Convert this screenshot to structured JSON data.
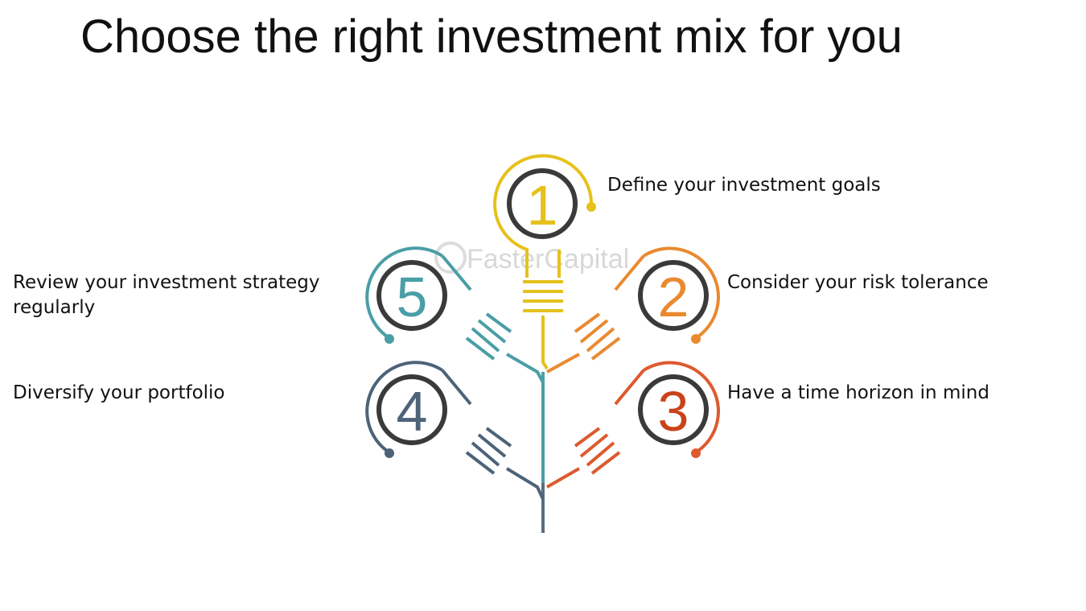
{
  "title": "Choose the right investment mix for you",
  "watermark": "FasterCapital",
  "colors": {
    "yellow": "#e6c11c",
    "orange": "#e98a30",
    "red_orange": "#dd5a2e",
    "teal": "#4a9ea6",
    "slate": "#4c6378",
    "stem": "#5a6c7c"
  },
  "steps": [
    {
      "number": "1",
      "label": "Define your investment goals",
      "color": "#e6c11c",
      "icon": "lightbulb-icon"
    },
    {
      "number": "2",
      "label": "Consider your risk tolerance",
      "color": "#e98a30",
      "icon": "lightbulb-icon"
    },
    {
      "number": "3",
      "label": "Have a time horizon in mind",
      "color": "#dd5a2e",
      "icon": "lightbulb-icon"
    },
    {
      "number": "4",
      "label": "Diversify your portfolio",
      "color": "#4c6378",
      "icon": "lightbulb-icon"
    },
    {
      "number": "5",
      "label": "Review your investment strategy regularly",
      "color": "#4a9ea6",
      "icon": "lightbulb-icon"
    }
  ]
}
